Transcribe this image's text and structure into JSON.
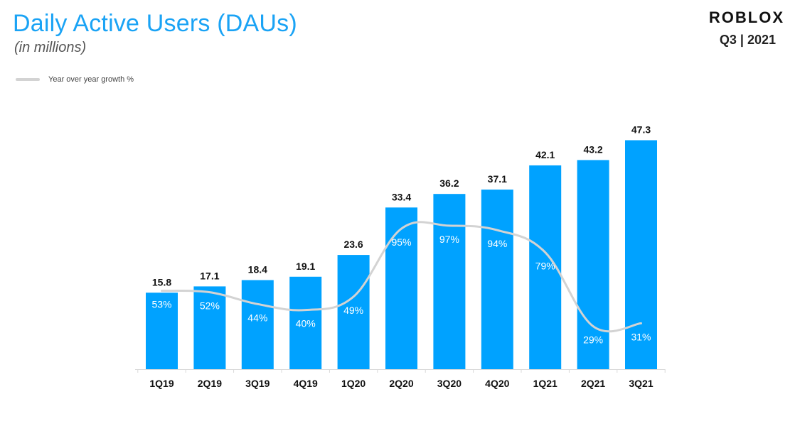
{
  "header": {
    "title": "Daily Active Users (DAUs)",
    "subtitle": "(in millions)",
    "brand": "ROBLOX",
    "period": "Q3 | 2021"
  },
  "legend": {
    "label": "Year over year growth %"
  },
  "colors": {
    "bar": "#00a2ff",
    "growth_line": "#d3d3d3",
    "title": "#1aa3f5"
  },
  "chart_data": {
    "type": "bar",
    "categories": [
      "1Q19",
      "2Q19",
      "3Q19",
      "4Q19",
      "1Q20",
      "2Q20",
      "3Q20",
      "4Q20",
      "1Q21",
      "2Q21",
      "3Q21"
    ],
    "series": [
      {
        "type": "bar",
        "values": [
          15.8,
          17.1,
          18.4,
          19.1,
          23.6,
          33.4,
          36.2,
          37.1,
          42.1,
          43.2,
          47.3
        ],
        "value_labels": [
          "15.8",
          "17.1",
          "18.4",
          "19.1",
          "23.6",
          "33.4",
          "36.2",
          "37.1",
          "42.1",
          "43.2",
          "47.3"
        ]
      },
      {
        "name": "Year over year growth %",
        "type": "line",
        "values": [
          53,
          52,
          44,
          40,
          49,
          95,
          97,
          94,
          79,
          29,
          31
        ],
        "value_labels": [
          "53%",
          "52%",
          "44%",
          "40%",
          "49%",
          "95%",
          "97%",
          "94%",
          "79%",
          "29%",
          "31%"
        ]
      }
    ],
    "title": "Daily Active Users (DAUs)",
    "ylabel": "",
    "xlabel": "",
    "ylim": [
      0,
      55
    ],
    "growth_ylim": [
      0,
      180
    ],
    "grid": false,
    "legend_position": "top-left"
  }
}
